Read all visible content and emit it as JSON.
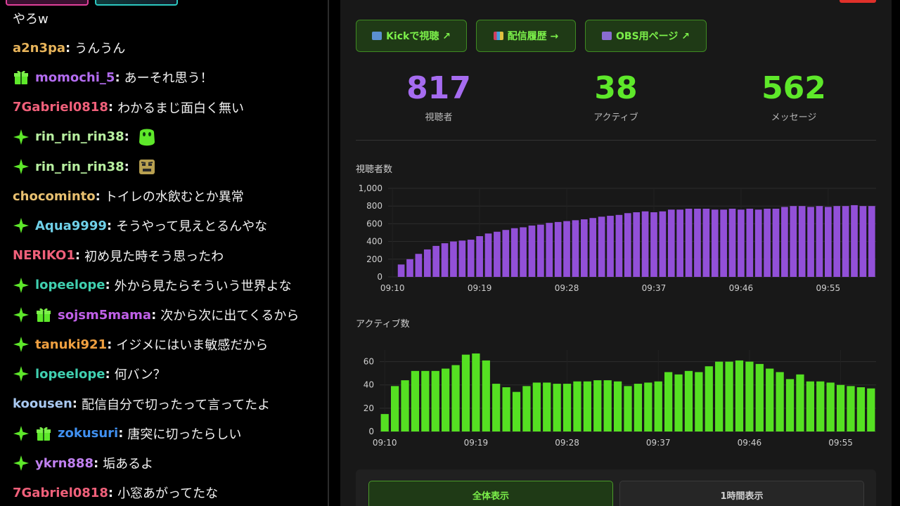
{
  "colors": {
    "accent_green": "#7cf04a",
    "viewers_purple": "#a66cf0",
    "active_green": "#5ee82a",
    "bar_purple": "#9250d8",
    "bar_green": "#55e022"
  },
  "chat": {
    "messages": [
      {
        "user": "",
        "text": "やろw",
        "color": "#f2f2f2",
        "sparkle": false,
        "gift": false,
        "emote": ""
      },
      {
        "user": "a2n3pa",
        "text": "うんうん",
        "color": "#e8b45a",
        "sparkle": false,
        "gift": false,
        "emote": ""
      },
      {
        "user": "momochi_5",
        "text": "あーそれ思う！",
        "color": "#b36cf0",
        "sparkle": false,
        "gift": true,
        "emote": ""
      },
      {
        "user": "7Gabriel0818",
        "text": "わかるまじ面白く無い",
        "color": "#f0607a",
        "sparkle": false,
        "gift": false,
        "emote": ""
      },
      {
        "user": "rin_rin_rin38",
        "text": "",
        "color": "#b8f0a0",
        "sparkle": true,
        "gift": false,
        "emote": "green-blob-emote"
      },
      {
        "user": "rin_rin_rin38",
        "text": "",
        "color": "#b8f0a0",
        "sparkle": true,
        "gift": false,
        "emote": "angry-face-emote"
      },
      {
        "user": "chocominto",
        "text": "トイレの水飲むとか異常",
        "color": "#e8c070",
        "sparkle": false,
        "gift": false,
        "emote": ""
      },
      {
        "user": "Aqua9999",
        "text": "そうやって見えとるんやな",
        "color": "#6fd0e8",
        "sparkle": true,
        "gift": false,
        "emote": ""
      },
      {
        "user": "NERIKO1",
        "text": "初め見た時そう思ったわ",
        "color": "#f0607a",
        "sparkle": false,
        "gift": false,
        "emote": ""
      },
      {
        "user": "lopeelope",
        "text": "外から見たらそういう世界よな",
        "color": "#40d0b0",
        "sparkle": true,
        "gift": false,
        "emote": ""
      },
      {
        "user": "sojsm5mama",
        "text": "次から次に出てくるから",
        "color": "#c060e8",
        "sparkle": true,
        "gift": true,
        "emote": ""
      },
      {
        "user": "tanuki921",
        "text": "イジメにはいま敏感だから",
        "color": "#f0a040",
        "sparkle": true,
        "gift": false,
        "emote": ""
      },
      {
        "user": "lopeelope",
        "text": "何バン？",
        "color": "#40d0b0",
        "sparkle": true,
        "gift": false,
        "emote": ""
      },
      {
        "user": "koousen",
        "text": "配信自分で切ったって言ってたよ",
        "color": "#a8c8f0",
        "sparkle": false,
        "gift": false,
        "emote": ""
      },
      {
        "user": "zokusuri",
        "text": "唐突に切ったらしい",
        "color": "#4090f0",
        "sparkle": true,
        "gift": true,
        "emote": ""
      },
      {
        "user": "ykrn888",
        "text": "垢あるよ",
        "color": "#c080f0",
        "sparkle": true,
        "gift": false,
        "emote": ""
      },
      {
        "user": "7Gabriel0818",
        "text": "小窓あがってたな",
        "color": "#f0607a",
        "sparkle": false,
        "gift": false,
        "emote": ""
      }
    ]
  },
  "links": {
    "kick": "Kickで視聴 ↗",
    "history": "配信履歴 →",
    "obs": "OBS用ページ ↗"
  },
  "stats": {
    "viewers_value": "817",
    "viewers_label": "視聴者",
    "active_value": "38",
    "active_label": "アクティブ",
    "messages_value": "562",
    "messages_label": "メッセージ"
  },
  "range": {
    "all_label": "全体表示",
    "hour_label": "1時間表示"
  },
  "chart_data": [
    {
      "type": "bar",
      "title": "視聴者数",
      "ylim": [
        0,
        1000
      ],
      "yticks": [
        "0",
        "200",
        "400",
        "600",
        "800",
        "1,000"
      ],
      "xtick_labels": [
        "09:10",
        "09:19",
        "09:28",
        "09:37",
        "09:46",
        "09:55"
      ],
      "grid": true,
      "values": [
        0,
        140,
        200,
        260,
        310,
        350,
        380,
        400,
        410,
        420,
        460,
        490,
        510,
        530,
        550,
        560,
        580,
        590,
        610,
        620,
        630,
        640,
        650,
        665,
        680,
        690,
        700,
        720,
        730,
        740,
        730,
        740,
        760,
        760,
        770,
        770,
        770,
        760,
        760,
        770,
        760,
        770,
        760,
        770,
        770,
        790,
        800,
        800,
        790,
        800,
        790,
        800,
        800,
        810,
        800,
        800
      ]
    },
    {
      "type": "bar",
      "title": "アクティブ数",
      "ylim": [
        0,
        70
      ],
      "yticks": [
        "0",
        "20",
        "40",
        "60"
      ],
      "xtick_labels": [
        "09:10",
        "09:19",
        "09:28",
        "09:37",
        "09:46",
        "09:55"
      ],
      "grid": true,
      "values": [
        15,
        39,
        44,
        52,
        52,
        52,
        54,
        57,
        66,
        67,
        61,
        41,
        38,
        34,
        39,
        42,
        42,
        41,
        41,
        43,
        43,
        44,
        44,
        43,
        39,
        41,
        42,
        43,
        51,
        49,
        52,
        51,
        56,
        60,
        60,
        61,
        60,
        58,
        54,
        51,
        45,
        49,
        43,
        43,
        42,
        40,
        39,
        38,
        37
      ]
    }
  ]
}
